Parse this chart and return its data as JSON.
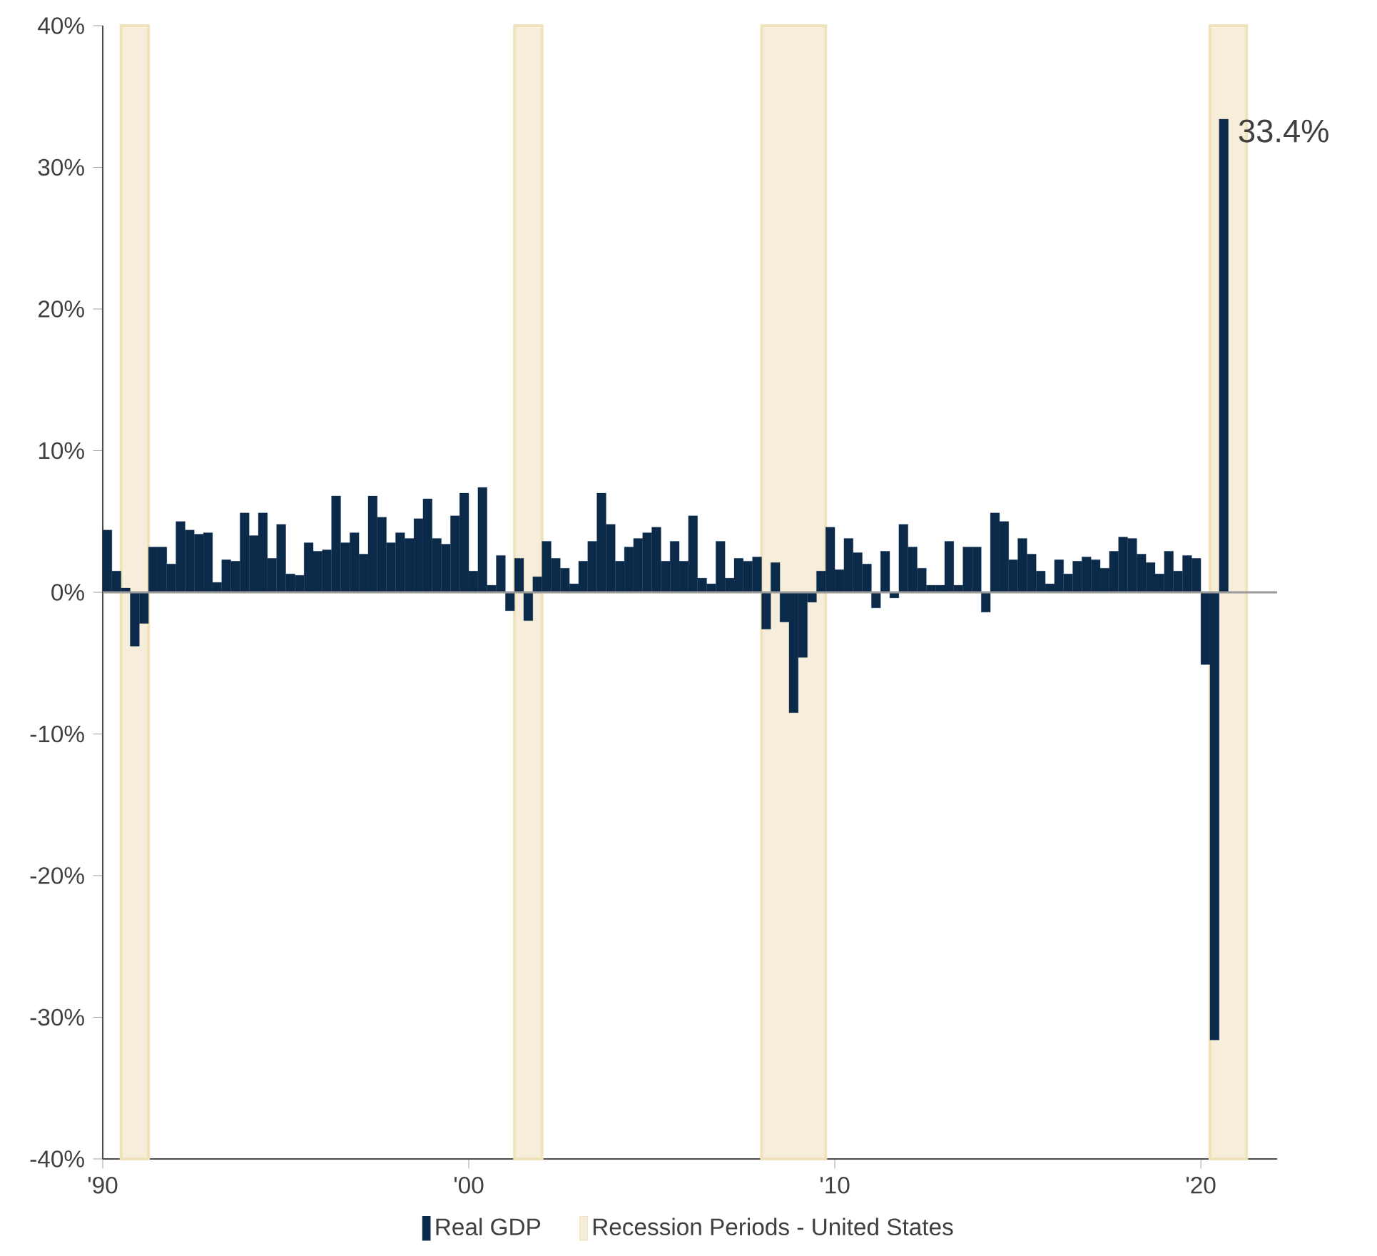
{
  "chart_data": {
    "type": "bar",
    "x": [
      "1990-01",
      "1990-04",
      "1990-07",
      "1990-10",
      "1991-01",
      "1991-04",
      "1991-07",
      "1991-10",
      "1992-01",
      "1992-04",
      "1992-07",
      "1992-10",
      "1993-01",
      "1993-04",
      "1993-07",
      "1993-10",
      "1994-01",
      "1994-04",
      "1994-07",
      "1994-10",
      "1995-01",
      "1995-04",
      "1995-07",
      "1995-10",
      "1996-01",
      "1996-04",
      "1996-07",
      "1996-10",
      "1997-01",
      "1997-04",
      "1997-07",
      "1997-10",
      "1998-01",
      "1998-04",
      "1998-07",
      "1998-10",
      "1999-01",
      "1999-04",
      "1999-07",
      "1999-10",
      "2000-01",
      "2000-04",
      "2000-07",
      "2000-10",
      "2001-01",
      "2001-04",
      "2001-07",
      "2001-10",
      "2002-01",
      "2002-04",
      "2002-07",
      "2002-10",
      "2003-01",
      "2003-04",
      "2003-07",
      "2003-10",
      "2004-01",
      "2004-04",
      "2004-07",
      "2004-10",
      "2005-01",
      "2005-04",
      "2005-07",
      "2005-10",
      "2006-01",
      "2006-04",
      "2006-07",
      "2006-10",
      "2007-01",
      "2007-04",
      "2007-07",
      "2007-10",
      "2008-01",
      "2008-04",
      "2008-07",
      "2008-10",
      "2009-01",
      "2009-04",
      "2009-07",
      "2009-10",
      "2010-01",
      "2010-04",
      "2010-07",
      "2010-10",
      "2011-01",
      "2011-04",
      "2011-07",
      "2011-10",
      "2012-01",
      "2012-04",
      "2012-07",
      "2012-10",
      "2013-01",
      "2013-04",
      "2013-07",
      "2013-10",
      "2014-01",
      "2014-04",
      "2014-07",
      "2014-10",
      "2015-01",
      "2015-04",
      "2015-07",
      "2015-10",
      "2016-01",
      "2016-04",
      "2016-07",
      "2016-10",
      "2017-01",
      "2017-04",
      "2017-07",
      "2017-10",
      "2018-01",
      "2018-04",
      "2018-07",
      "2018-10",
      "2019-01",
      "2019-04",
      "2019-07",
      "2019-10",
      "2020-01",
      "2020-04",
      "2020-07"
    ],
    "series": [
      {
        "name": "Real GDP",
        "color": "#0b2a4a",
        "values": [
          4.4,
          1.5,
          0.3,
          -3.8,
          -2.2,
          3.2,
          3.2,
          2.0,
          5.0,
          4.4,
          4.1,
          4.2,
          0.7,
          2.3,
          2.2,
          5.6,
          4.0,
          5.6,
          2.4,
          4.8,
          1.3,
          1.2,
          3.5,
          2.9,
          3.0,
          6.8,
          3.5,
          4.2,
          2.7,
          6.8,
          5.3,
          3.5,
          4.2,
          3.8,
          5.2,
          6.6,
          3.8,
          3.4,
          5.4,
          7.0,
          1.5,
          7.4,
          0.5,
          2.6,
          -1.3,
          2.4,
          -2.0,
          1.1,
          3.6,
          2.4,
          1.7,
          0.6,
          2.2,
          3.6,
          7.0,
          4.8,
          2.2,
          3.2,
          3.8,
          4.2,
          4.6,
          2.2,
          3.6,
          2.2,
          5.4,
          1.0,
          0.6,
          3.6,
          1.0,
          2.4,
          2.2,
          2.5,
          -2.6,
          2.1,
          -2.1,
          -8.5,
          -4.6,
          -0.7,
          1.5,
          4.6,
          1.6,
          3.8,
          2.8,
          2.0,
          -1.1,
          2.9,
          -0.4,
          4.8,
          3.2,
          1.7,
          0.5,
          0.5,
          3.6,
          0.5,
          3.2,
          3.2,
          -1.4,
          5.6,
          5.0,
          2.3,
          3.8,
          2.7,
          1.5,
          0.6,
          2.3,
          1.3,
          2.2,
          2.5,
          2.3,
          1.7,
          2.9,
          3.9,
          3.8,
          2.7,
          2.1,
          1.3,
          2.9,
          1.5,
          2.6,
          2.4,
          -5.1,
          -31.6,
          33.4
        ]
      }
    ],
    "xlim": [
      "1990-01",
      "2022-02"
    ],
    "xticks": [
      {
        "value": "1990-01",
        "label": "'90"
      },
      {
        "value": "2000-01",
        "label": "'00"
      },
      {
        "value": "2010-01",
        "label": "'10"
      },
      {
        "value": "2020-01",
        "label": "'20"
      }
    ],
    "ylim": [
      -40,
      40
    ],
    "yticks": [
      {
        "value": -40,
        "label": "-40%"
      },
      {
        "value": -30,
        "label": "-30%"
      },
      {
        "value": -20,
        "label": "-20%"
      },
      {
        "value": -10,
        "label": "-10%"
      },
      {
        "value": 0,
        "label": "0%"
      },
      {
        "value": 10,
        "label": "10%"
      },
      {
        "value": 20,
        "label": "20%"
      },
      {
        "value": 30,
        "label": "30%"
      },
      {
        "value": 40,
        "label": "40%"
      }
    ],
    "bands": [
      {
        "axis": "x",
        "from": "1990-07",
        "to": "1991-04",
        "label": "Recession Periods - United States",
        "color": "#f6eedb"
      },
      {
        "axis": "x",
        "from": "2001-04",
        "to": "2002-01",
        "color": "#f6eedb"
      },
      {
        "axis": "x",
        "from": "2008-01",
        "to": "2009-10",
        "color": "#f6eedb"
      },
      {
        "axis": "x",
        "from": "2020-04",
        "to": "2021-04",
        "color": "#f6eedb"
      }
    ],
    "ref_lines": [
      {
        "axis": "y",
        "value": 0,
        "color": "#9a9a9a"
      }
    ],
    "annotations": [
      {
        "text": "33.4%",
        "x": "2020-07",
        "y": 33.4
      }
    ],
    "grid": false,
    "legend": "bottom"
  }
}
